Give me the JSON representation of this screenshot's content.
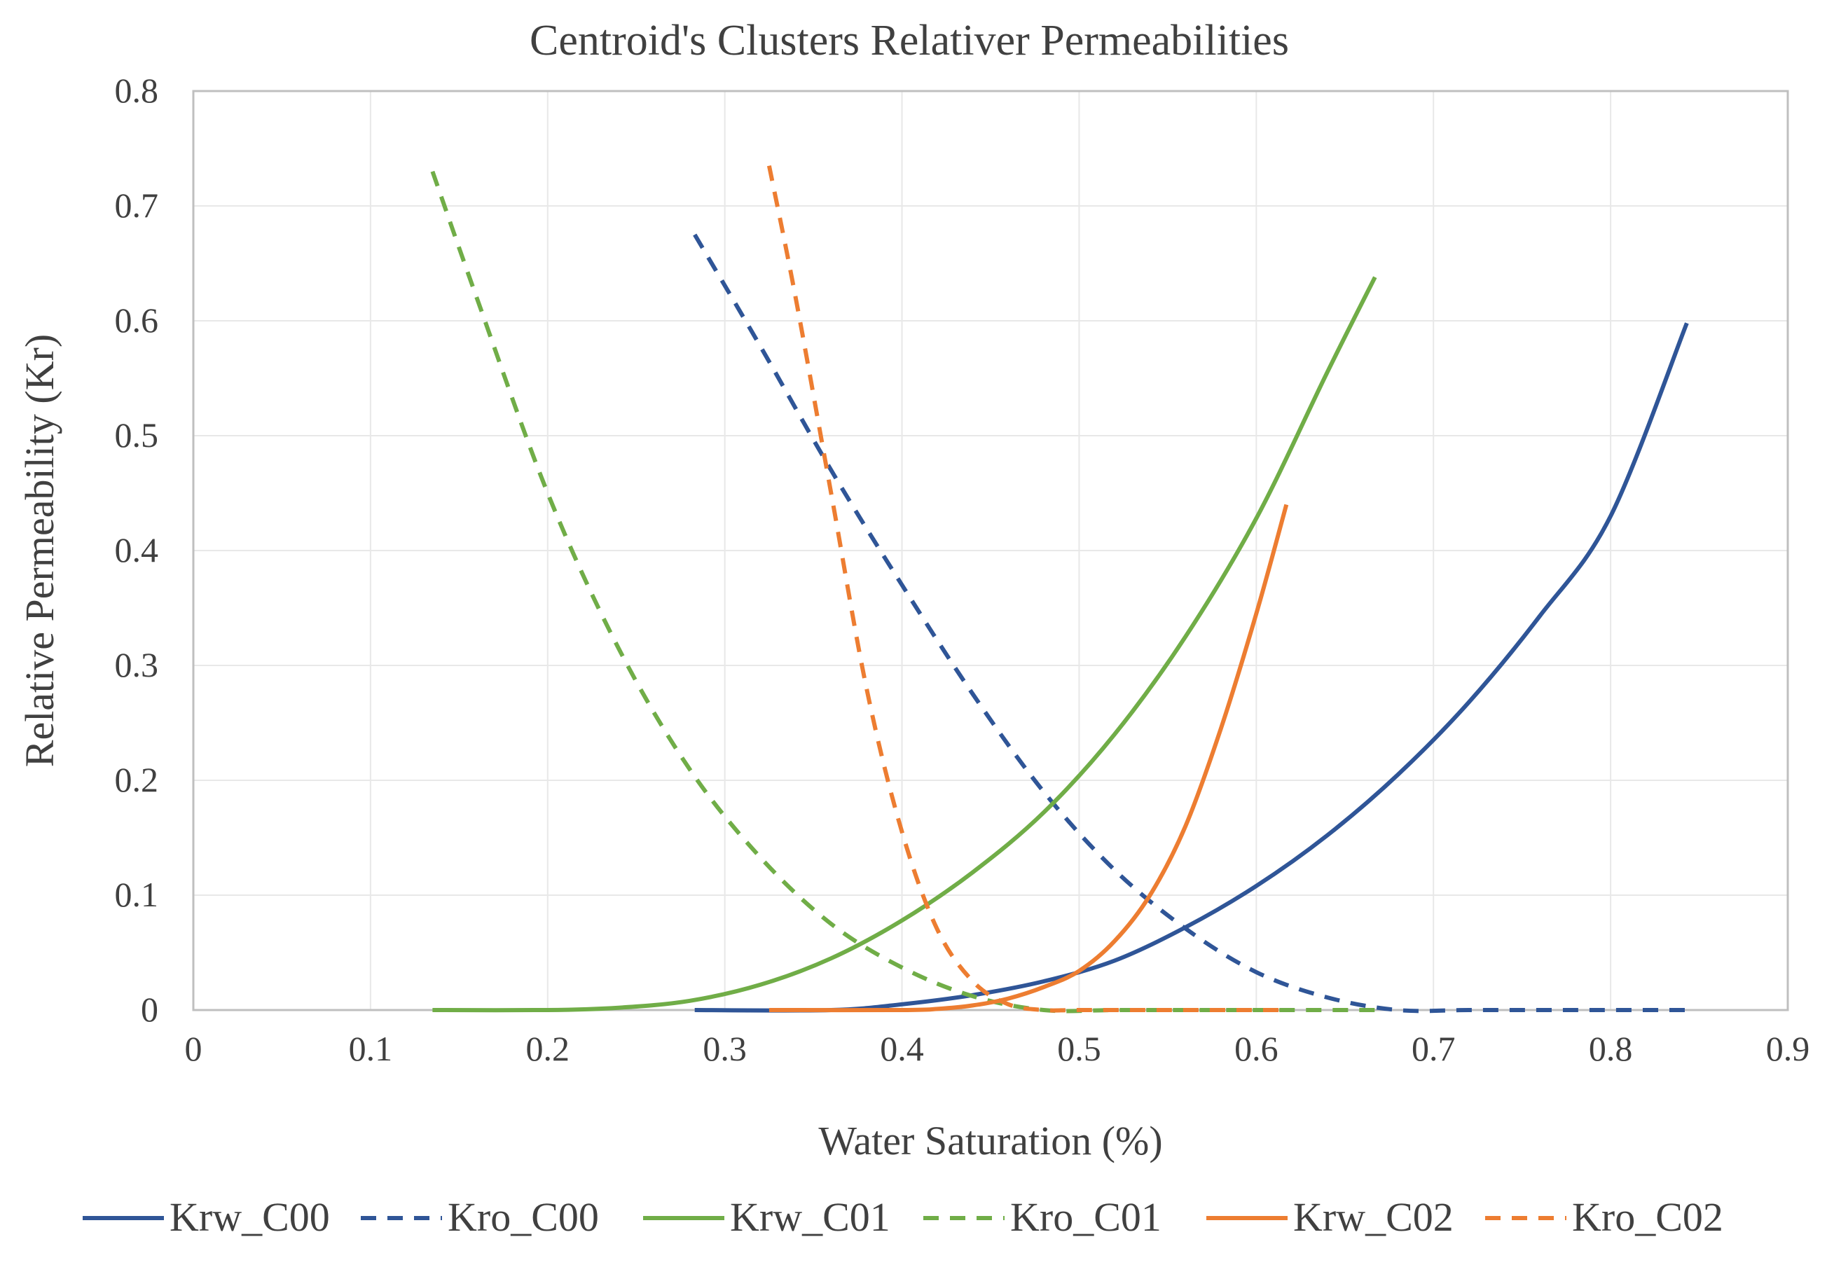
{
  "chart_data": {
    "type": "line",
    "title": "Centroid's Clusters Relativer Permeabilities",
    "xlabel": "Water Saturation (%)",
    "ylabel": "Relative Permeability (Kr)",
    "xlim": [
      0,
      0.9
    ],
    "ylim": [
      0,
      0.8
    ],
    "x_ticks": [
      "0",
      "0.1",
      "0.2",
      "0.3",
      "0.4",
      "0.5",
      "0.6",
      "0.7",
      "0.8",
      "0.9"
    ],
    "y_ticks": [
      "0",
      "0.1",
      "0.2",
      "0.3",
      "0.4",
      "0.5",
      "0.6",
      "0.7",
      "0.8"
    ],
    "grid": true,
    "legend_position": "bottom",
    "series": [
      {
        "name": "Krw_C00",
        "color": "#2F5597",
        "dash": "solid",
        "x": [
          0.283,
          0.36,
          0.4,
          0.44,
          0.48,
          0.52,
          0.56,
          0.6,
          0.64,
          0.68,
          0.72,
          0.76,
          0.8,
          0.843
        ],
        "y": [
          0.0,
          0.0,
          0.005,
          0.013,
          0.025,
          0.043,
          0.072,
          0.108,
          0.152,
          0.205,
          0.268,
          0.343,
          0.43,
          0.598
        ]
      },
      {
        "name": "Kro_C00",
        "color": "#2F5597",
        "dash": "dashed",
        "x": [
          0.283,
          0.32,
          0.36,
          0.4,
          0.44,
          0.48,
          0.52,
          0.56,
          0.6,
          0.64,
          0.68,
          0.72,
          0.76,
          0.8,
          0.843
        ],
        "y": [
          0.675,
          0.578,
          0.47,
          0.37,
          0.275,
          0.19,
          0.122,
          0.071,
          0.033,
          0.011,
          0.0,
          0.0,
          0.0,
          0.0,
          0.0
        ]
      },
      {
        "name": "Krw_C01",
        "color": "#70AD47",
        "dash": "solid",
        "x": [
          0.135,
          0.2,
          0.24,
          0.28,
          0.32,
          0.36,
          0.4,
          0.44,
          0.48,
          0.52,
          0.56,
          0.6,
          0.64,
          0.667
        ],
        "y": [
          0.0,
          0.0,
          0.002,
          0.008,
          0.022,
          0.045,
          0.078,
          0.12,
          0.172,
          0.24,
          0.325,
          0.428,
          0.555,
          0.638
        ]
      },
      {
        "name": "Kro_C01",
        "color": "#70AD47",
        "dash": "dashed",
        "x": [
          0.135,
          0.16,
          0.2,
          0.24,
          0.28,
          0.32,
          0.36,
          0.4,
          0.44,
          0.48,
          0.52,
          0.56,
          0.6,
          0.667
        ],
        "y": [
          0.73,
          0.62,
          0.45,
          0.315,
          0.21,
          0.133,
          0.075,
          0.037,
          0.012,
          0.0,
          0.0,
          0.0,
          0.0,
          0.0
        ]
      },
      {
        "name": "Krw_C02",
        "color": "#ED7D31",
        "dash": "solid",
        "x": [
          0.325,
          0.4,
          0.42,
          0.44,
          0.46,
          0.48,
          0.5,
          0.52,
          0.54,
          0.56,
          0.58,
          0.6,
          0.617
        ],
        "y": [
          0.0,
          0.0,
          0.001,
          0.004,
          0.01,
          0.02,
          0.034,
          0.06,
          0.1,
          0.16,
          0.245,
          0.345,
          0.44
        ]
      },
      {
        "name": "Kro_C02",
        "color": "#ED7D31",
        "dash": "dashed",
        "x": [
          0.325,
          0.34,
          0.36,
          0.38,
          0.4,
          0.42,
          0.44,
          0.46,
          0.48,
          0.5,
          0.55,
          0.617
        ],
        "y": [
          0.735,
          0.62,
          0.45,
          0.28,
          0.155,
          0.07,
          0.025,
          0.005,
          0.0,
          0.0,
          0.0,
          0.0
        ]
      }
    ]
  }
}
